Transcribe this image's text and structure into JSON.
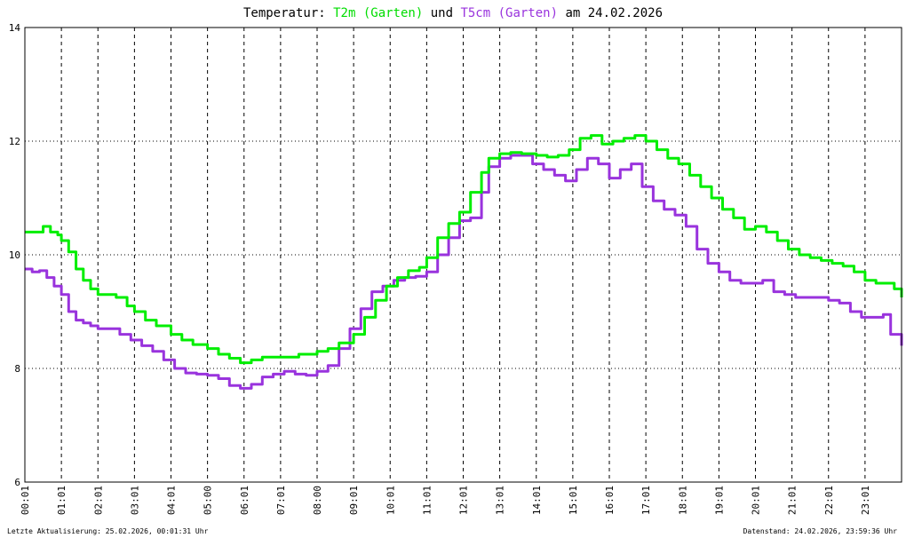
{
  "title": {
    "prefix": "Temperatur: ",
    "series1": "T2m (Garten)",
    "middle": " und ",
    "series2": "T5cm (Garten)",
    "suffix": " am 24.02.2026"
  },
  "footer": {
    "left": "Letzte Aktualisierung: 25.02.2026, 00:01:31 Uhr",
    "right": "Datenstand: 24.02.2026, 23:59:36 Uhr"
  },
  "chart_data": {
    "type": "line",
    "title": "Temperatur: T2m (Garten) und T5cm (Garten) am 24.02.2026",
    "xlabel": "",
    "ylabel": "",
    "ylim": [
      6,
      14
    ],
    "yticks": [
      "6",
      "8",
      "10",
      "12",
      "14"
    ],
    "xlim": [
      0,
      24
    ],
    "xticks": [
      "00:01",
      "01:01",
      "02:01",
      "03:01",
      "04:01",
      "05:00",
      "06:01",
      "07:01",
      "08:00",
      "09:01",
      "10:01",
      "11:01",
      "12:01",
      "13:01",
      "14:01",
      "15:01",
      "16:01",
      "17:01",
      "18:01",
      "19:01",
      "20:01",
      "21:01",
      "22:01",
      "23:01"
    ],
    "grid": true,
    "series": [
      {
        "name": "T2m (Garten)",
        "color": "#00ee00",
        "x": [
          0.0,
          0.3,
          0.5,
          0.7,
          0.9,
          1.0,
          1.2,
          1.4,
          1.6,
          1.8,
          2.0,
          2.5,
          2.8,
          3.0,
          3.3,
          3.6,
          4.0,
          4.3,
          4.6,
          5.0,
          5.3,
          5.6,
          5.9,
          6.2,
          6.5,
          7.0,
          7.5,
          8.0,
          8.3,
          8.6,
          9.0,
          9.3,
          9.6,
          9.9,
          10.2,
          10.5,
          10.8,
          11.0,
          11.3,
          11.6,
          11.9,
          12.2,
          12.5,
          12.7,
          13.0,
          13.3,
          13.6,
          14.0,
          14.3,
          14.6,
          14.9,
          15.2,
          15.5,
          15.8,
          16.1,
          16.4,
          16.7,
          17.0,
          17.3,
          17.6,
          17.9,
          18.2,
          18.5,
          18.8,
          19.1,
          19.4,
          19.7,
          20.0,
          20.3,
          20.6,
          20.9,
          21.2,
          21.5,
          21.8,
          22.1,
          22.4,
          22.7,
          23.0,
          23.3,
          23.6,
          23.8,
          24.0
        ],
        "values": [
          10.4,
          10.4,
          10.5,
          10.4,
          10.35,
          10.25,
          10.05,
          9.75,
          9.55,
          9.4,
          9.3,
          9.25,
          9.1,
          9.0,
          8.85,
          8.75,
          8.6,
          8.5,
          8.42,
          8.35,
          8.25,
          8.18,
          8.1,
          8.15,
          8.2,
          8.2,
          8.25,
          8.3,
          8.35,
          8.45,
          8.6,
          8.9,
          9.2,
          9.45,
          9.6,
          9.72,
          9.78,
          9.95,
          10.3,
          10.55,
          10.75,
          11.1,
          11.45,
          11.7,
          11.78,
          11.8,
          11.78,
          11.75,
          11.72,
          11.75,
          11.85,
          12.05,
          12.1,
          11.95,
          12.0,
          12.05,
          12.1,
          12.0,
          11.85,
          11.7,
          11.6,
          11.4,
          11.2,
          11.0,
          10.8,
          10.65,
          10.45,
          10.5,
          10.4,
          10.25,
          10.1,
          10.0,
          9.95,
          9.9,
          9.85,
          9.8,
          9.7,
          9.55,
          9.5,
          9.5,
          9.4,
          9.25
        ]
      },
      {
        "name": "T5cm (Garten)",
        "color": "#9933dd",
        "x": [
          0.0,
          0.2,
          0.4,
          0.6,
          0.8,
          1.0,
          1.2,
          1.4,
          1.6,
          1.8,
          2.0,
          2.3,
          2.6,
          2.9,
          3.2,
          3.5,
          3.8,
          4.1,
          4.4,
          4.7,
          5.0,
          5.3,
          5.6,
          5.9,
          6.2,
          6.5,
          6.8,
          7.1,
          7.4,
          7.7,
          8.0,
          8.3,
          8.6,
          8.9,
          9.2,
          9.5,
          9.8,
          10.1,
          10.4,
          10.7,
          11.0,
          11.3,
          11.6,
          11.9,
          12.2,
          12.5,
          12.7,
          13.0,
          13.3,
          13.6,
          13.9,
          14.2,
          14.5,
          14.8,
          15.1,
          15.4,
          15.7,
          16.0,
          16.3,
          16.6,
          16.9,
          17.2,
          17.5,
          17.8,
          18.1,
          18.4,
          18.7,
          19.0,
          19.3,
          19.6,
          19.9,
          20.2,
          20.5,
          20.8,
          21.1,
          21.4,
          21.7,
          22.0,
          22.3,
          22.6,
          22.9,
          23.2,
          23.5,
          23.7,
          24.0
        ],
        "values": [
          9.75,
          9.7,
          9.72,
          9.6,
          9.45,
          9.3,
          9.0,
          8.85,
          8.8,
          8.75,
          8.7,
          8.7,
          8.6,
          8.5,
          8.4,
          8.3,
          8.15,
          8.0,
          7.92,
          7.9,
          7.88,
          7.82,
          7.7,
          7.65,
          7.72,
          7.85,
          7.9,
          7.95,
          7.9,
          7.88,
          7.95,
          8.05,
          8.35,
          8.7,
          9.05,
          9.35,
          9.45,
          9.55,
          9.6,
          9.62,
          9.7,
          10.0,
          10.3,
          10.6,
          10.65,
          11.1,
          11.55,
          11.7,
          11.75,
          11.75,
          11.6,
          11.5,
          11.4,
          11.3,
          11.5,
          11.7,
          11.6,
          11.35,
          11.5,
          11.6,
          11.2,
          10.95,
          10.8,
          10.7,
          10.5,
          10.1,
          9.85,
          9.7,
          9.55,
          9.5,
          9.5,
          9.55,
          9.35,
          9.3,
          9.25,
          9.25,
          9.25,
          9.2,
          9.15,
          9.0,
          8.9,
          8.9,
          8.95,
          8.6,
          8.4
        ]
      }
    ]
  }
}
